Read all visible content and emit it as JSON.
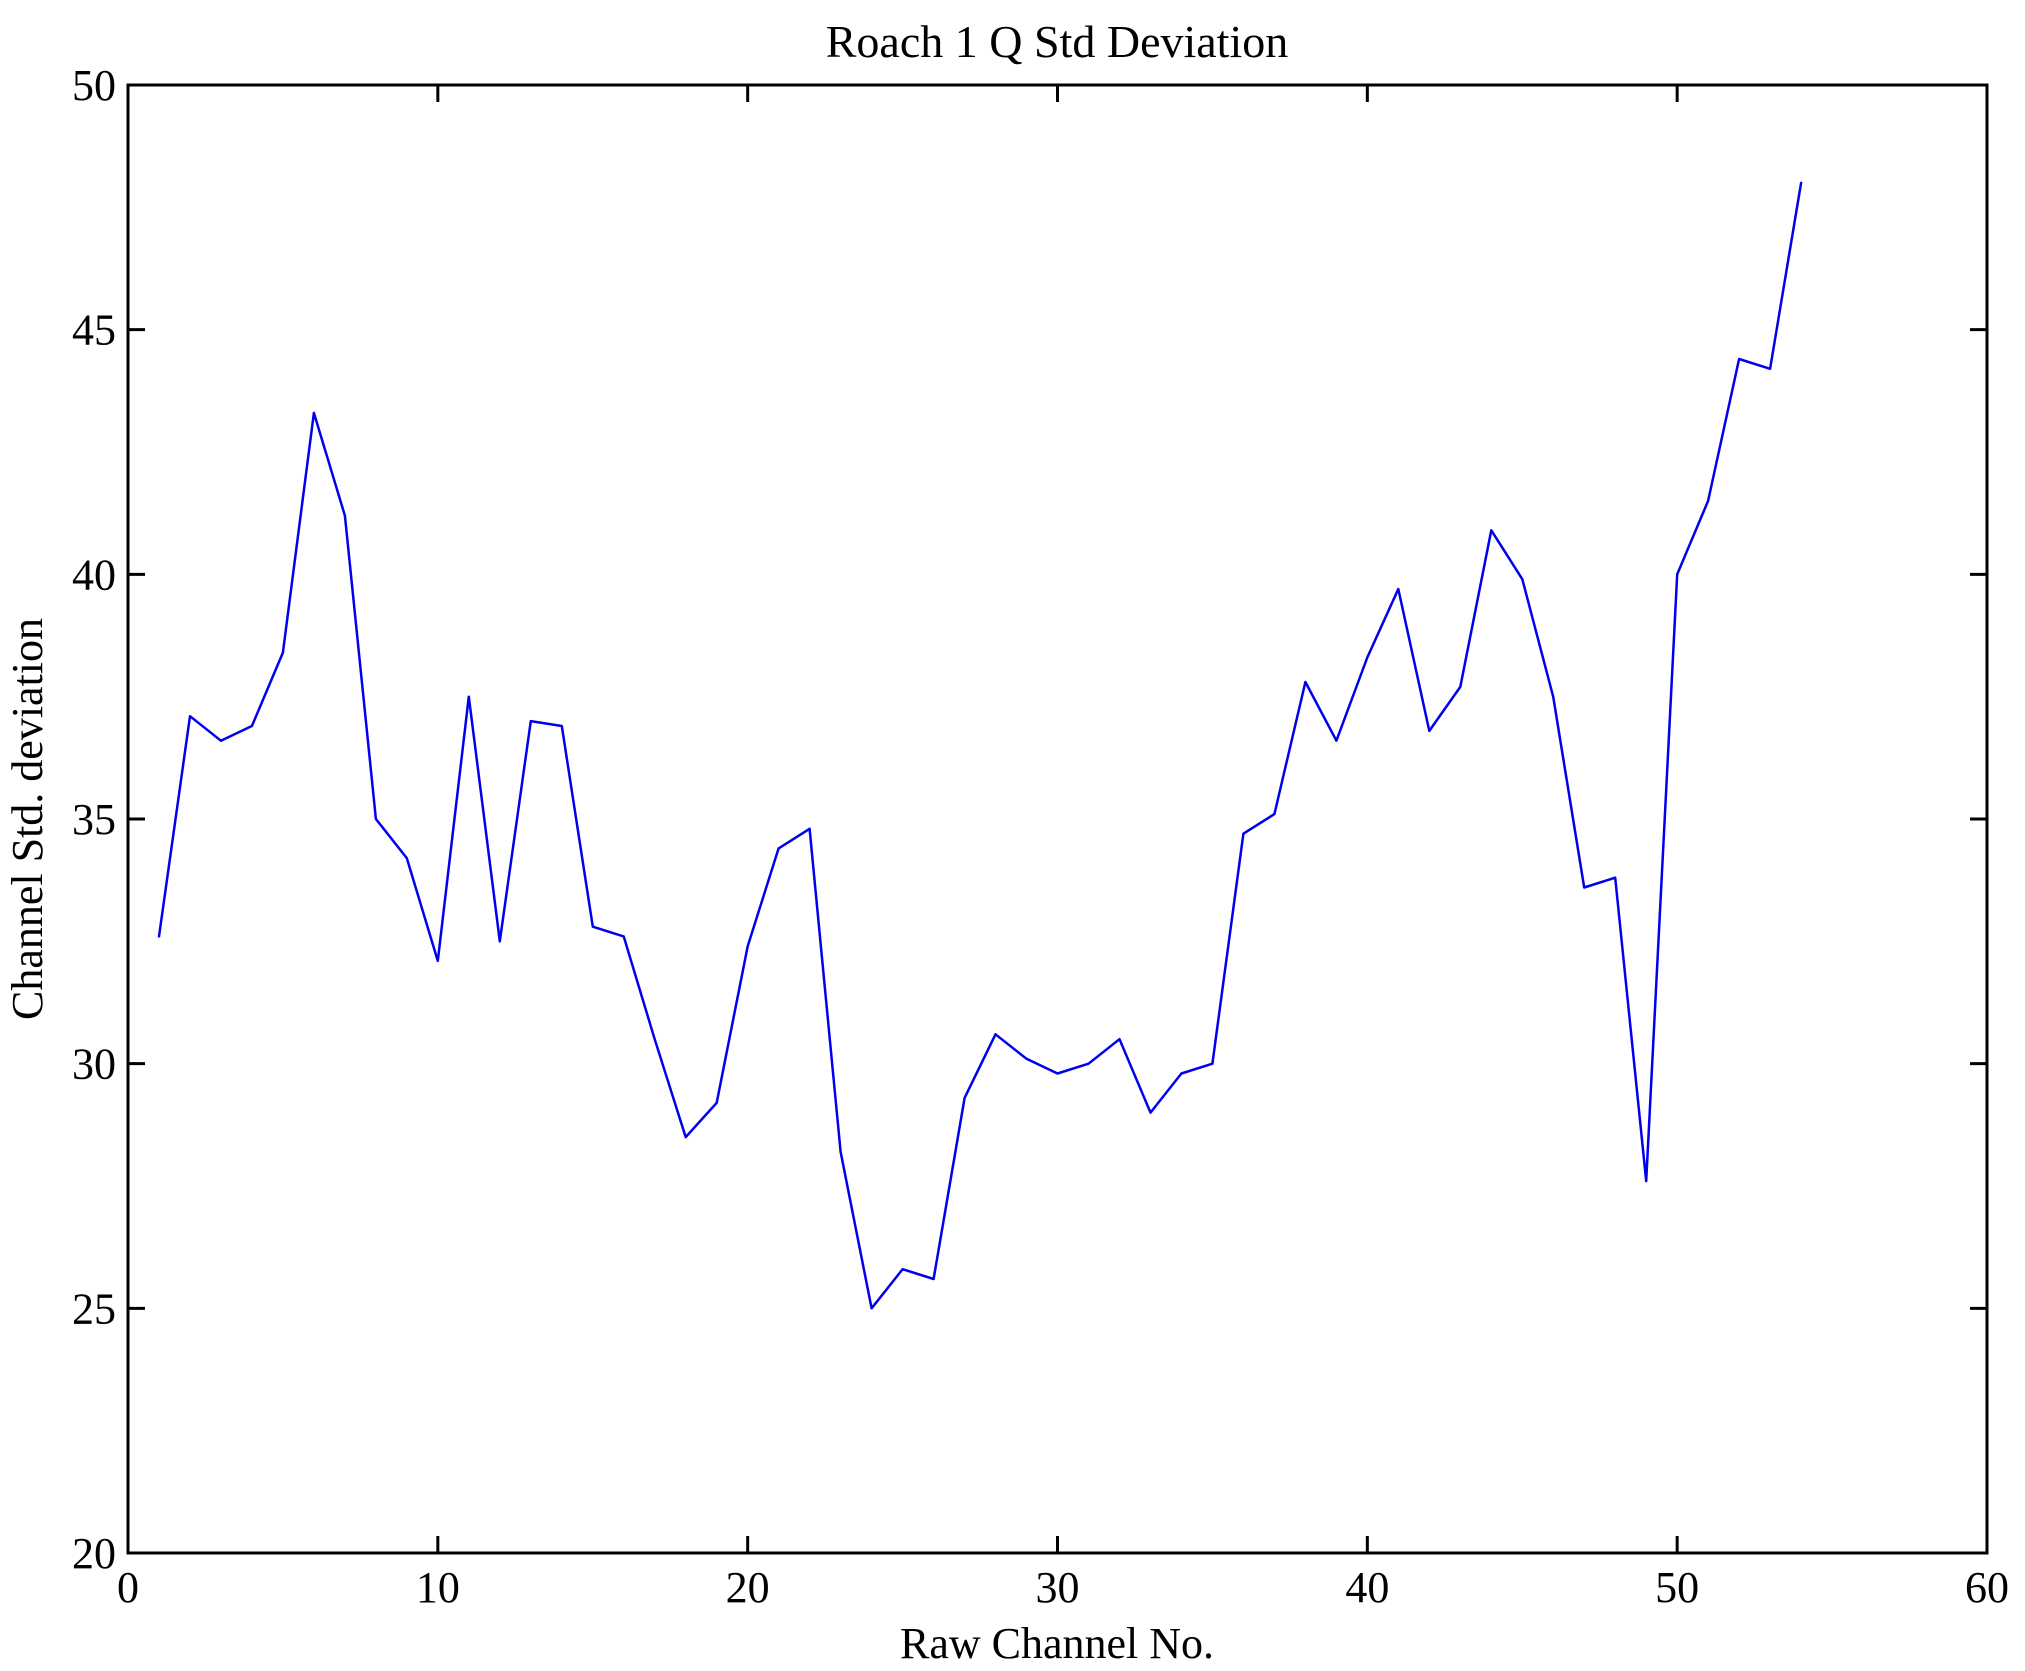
{
  "chart_data": {
    "type": "line",
    "title": "Roach 1 Q Std Deviation",
    "xlabel": "Raw Channel No.",
    "ylabel": "Channel Std. deviation",
    "xlim": [
      0,
      60
    ],
    "ylim": [
      20,
      50
    ],
    "x_ticks": [
      0,
      10,
      20,
      30,
      40,
      50,
      60
    ],
    "y_ticks": [
      20,
      25,
      30,
      35,
      40,
      45,
      50
    ],
    "grid": false,
    "legend": "none",
    "line_color": "#0000EE",
    "axis_color": "#000000",
    "background_color": "#FFFFFF",
    "series_name": "Channel Std. deviation",
    "x": [
      1,
      2,
      3,
      4,
      5,
      6,
      7,
      8,
      9,
      10,
      11,
      12,
      13,
      14,
      15,
      16,
      17,
      18,
      19,
      20,
      21,
      22,
      23,
      24,
      25,
      26,
      27,
      28,
      29,
      30,
      31,
      32,
      33,
      34,
      35,
      36,
      37,
      38,
      39,
      40,
      41,
      42,
      43,
      44,
      45,
      46,
      47,
      48,
      49,
      50,
      51,
      52,
      53,
      54
    ],
    "values": [
      32.6,
      37.1,
      36.6,
      36.9,
      38.4,
      43.3,
      41.2,
      35.0,
      34.2,
      32.1,
      37.5,
      32.5,
      37.0,
      36.9,
      32.8,
      32.6,
      30.5,
      28.5,
      29.2,
      32.4,
      34.4,
      34.8,
      28.2,
      25.0,
      25.8,
      25.6,
      29.3,
      30.6,
      30.1,
      29.8,
      30.0,
      30.5,
      29.0,
      29.8,
      30.0,
      34.7,
      35.1,
      37.8,
      36.6,
      38.3,
      39.7,
      36.8,
      37.7,
      40.9,
      39.9,
      37.5,
      33.6,
      33.8,
      27.6,
      40.0,
      41.5,
      44.4,
      44.2,
      48.0
    ]
  }
}
